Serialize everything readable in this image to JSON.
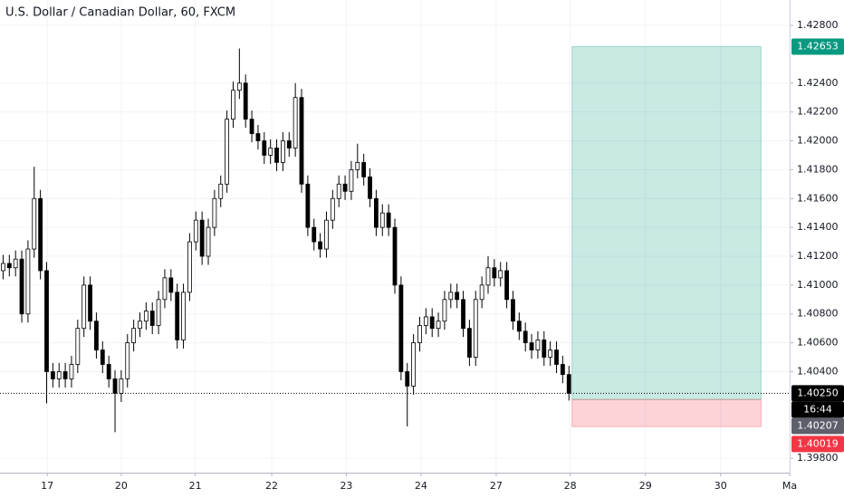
{
  "chart_data": {
    "type": "candlestick",
    "title": "U.S. Dollar / Canadian Dollar, 60, FXCM",
    "xlim": [
      0,
      127
    ],
    "ylim": [
      1.397,
      1.42976
    ],
    "xticks": [
      {
        "value": 7.6,
        "label": "17"
      },
      {
        "value": 19.5,
        "label": "20"
      },
      {
        "value": 31.4,
        "label": "21"
      },
      {
        "value": 43.7,
        "label": "22"
      },
      {
        "value": 55.7,
        "label": "23"
      },
      {
        "value": 67.7,
        "label": "24"
      },
      {
        "value": 79.8,
        "label": "27"
      },
      {
        "value": 91.7,
        "label": "28"
      },
      {
        "value": 103.8,
        "label": "29"
      },
      {
        "value": 115.9,
        "label": "30"
      },
      {
        "value": 127,
        "label": "Ma"
      }
    ],
    "yticks": [
      {
        "value": 1.428,
        "label": "1.42800"
      },
      {
        "value": 1.424,
        "label": "1.42400"
      },
      {
        "value": 1.422,
        "label": "1.42200"
      },
      {
        "value": 1.42,
        "label": "1.42000"
      },
      {
        "value": 1.418,
        "label": "1.41800"
      },
      {
        "value": 1.416,
        "label": "1.41600"
      },
      {
        "value": 1.414,
        "label": "1.41400"
      },
      {
        "value": 1.412,
        "label": "1.41200"
      },
      {
        "value": 1.41,
        "label": "1.41000"
      },
      {
        "value": 1.408,
        "label": "1.40800"
      },
      {
        "value": 1.406,
        "label": "1.40600"
      },
      {
        "value": 1.404,
        "label": "1.40400"
      },
      {
        "value": 1.398,
        "label": "1.39800"
      }
    ],
    "grid": true,
    "up_color": "#ffffff",
    "down_color": "#000000",
    "open": [
      1.411,
      1.4115,
      1.4112,
      1.4118,
      1.408,
      1.4125,
      1.416,
      1.411,
      1.404,
      1.4035,
      1.404,
      1.4035,
      1.4045,
      1.407,
      1.41,
      1.4075,
      1.4055,
      1.4045,
      1.4035,
      1.4025,
      1.4035,
      1.406,
      1.407,
      1.4075,
      1.4082,
      1.4072,
      1.409,
      1.4105,
      1.4095,
      1.4062,
      1.4095,
      1.413,
      1.4145,
      1.412,
      1.414,
      1.416,
      1.417,
      1.4215,
      1.4235,
      1.424,
      1.4215,
      1.4205,
      1.42,
      1.419,
      1.4195,
      1.4185,
      1.42,
      1.4195,
      1.423,
      1.417,
      1.414,
      1.413,
      1.4125,
      1.4145,
      1.416,
      1.417,
      1.4165,
      1.418,
      1.4185,
      1.4175,
      1.416,
      1.414,
      1.415,
      1.414,
      1.41,
      1.404,
      1.403,
      1.406,
      1.4072,
      1.4078,
      1.407,
      1.4075,
      1.409,
      1.4095,
      1.409,
      1.407,
      1.405,
      1.409,
      1.41,
      1.4112,
      1.4105,
      1.411,
      1.409,
      1.4075,
      1.4068,
      1.406,
      1.4055,
      1.4062,
      1.405,
      1.4055,
      1.4045,
      1.4038
    ],
    "high": [
      1.4121,
      1.4121,
      1.4124,
      1.4124,
      1.4131,
      1.4182,
      1.4166,
      1.4116,
      1.4046,
      1.4046,
      1.4046,
      1.4051,
      1.4076,
      1.4106,
      1.4106,
      1.4081,
      1.4061,
      1.4051,
      1.4041,
      1.4041,
      1.4066,
      1.4076,
      1.4081,
      1.4088,
      1.4088,
      1.4096,
      1.4111,
      1.4111,
      1.4101,
      1.4101,
      1.4136,
      1.4151,
      1.4151,
      1.4146,
      1.4166,
      1.4176,
      1.4221,
      1.4241,
      1.4264,
      1.4246,
      1.4221,
      1.4211,
      1.4206,
      1.4201,
      1.4201,
      1.4206,
      1.4206,
      1.424,
      1.4236,
      1.4176,
      1.4146,
      1.4136,
      1.4151,
      1.4166,
      1.4176,
      1.4176,
      1.4186,
      1.4198,
      1.4191,
      1.4181,
      1.4166,
      1.4156,
      1.4156,
      1.4146,
      1.4106,
      1.4046,
      1.4066,
      1.4078,
      1.4084,
      1.4084,
      1.4081,
      1.4096,
      1.4101,
      1.4101,
      1.4096,
      1.4076,
      1.4096,
      1.4106,
      1.412,
      1.4118,
      1.4116,
      1.4116,
      1.4096,
      1.4081,
      1.4074,
      1.4066,
      1.4068,
      1.4068,
      1.4061,
      1.4061,
      1.4051,
      1.4044
    ],
    "low": [
      1.4104,
      1.4106,
      1.4106,
      1.4074,
      1.4074,
      1.4119,
      1.4104,
      1.4018,
      1.4029,
      1.4029,
      1.4029,
      1.4029,
      1.4039,
      1.4064,
      1.4069,
      1.4049,
      1.4039,
      1.4029,
      1.3998,
      1.4019,
      1.4029,
      1.4054,
      1.4064,
      1.4069,
      1.4066,
      1.4066,
      1.4084,
      1.4089,
      1.4056,
      1.4056,
      1.4089,
      1.4124,
      1.4114,
      1.4114,
      1.4134,
      1.4154,
      1.4164,
      1.4209,
      1.4229,
      1.4209,
      1.4199,
      1.4194,
      1.4184,
      1.4184,
      1.4179,
      1.4179,
      1.4189,
      1.4189,
      1.4164,
      1.4134,
      1.4124,
      1.4119,
      1.4119,
      1.4139,
      1.4154,
      1.4159,
      1.4159,
      1.4174,
      1.4169,
      1.4154,
      1.4134,
      1.4134,
      1.4134,
      1.4094,
      1.4034,
      1.4002,
      1.4024,
      1.4054,
      1.4066,
      1.4064,
      1.4064,
      1.4069,
      1.4084,
      1.4084,
      1.4064,
      1.4044,
      1.4044,
      1.4084,
      1.4094,
      1.4099,
      1.4099,
      1.4084,
      1.4069,
      1.4062,
      1.4054,
      1.4049,
      1.4049,
      1.4044,
      1.4044,
      1.4039,
      1.4032,
      1.402
    ],
    "close": [
      1.4115,
      1.4112,
      1.4118,
      1.408,
      1.4125,
      1.416,
      1.411,
      1.404,
      1.4035,
      1.404,
      1.4035,
      1.4045,
      1.407,
      1.41,
      1.4075,
      1.4055,
      1.4045,
      1.4035,
      1.4025,
      1.4035,
      1.406,
      1.407,
      1.4075,
      1.4082,
      1.4072,
      1.409,
      1.4105,
      1.4095,
      1.4062,
      1.4095,
      1.413,
      1.4145,
      1.412,
      1.414,
      1.416,
      1.417,
      1.4215,
      1.4235,
      1.424,
      1.4215,
      1.4205,
      1.42,
      1.419,
      1.4195,
      1.4185,
      1.42,
      1.4195,
      1.423,
      1.417,
      1.414,
      1.413,
      1.4125,
      1.4145,
      1.416,
      1.417,
      1.4165,
      1.418,
      1.4185,
      1.4175,
      1.416,
      1.414,
      1.415,
      1.414,
      1.41,
      1.404,
      1.403,
      1.406,
      1.4072,
      1.4078,
      1.407,
      1.4075,
      1.409,
      1.4095,
      1.409,
      1.407,
      1.405,
      1.409,
      1.41,
      1.4112,
      1.4105,
      1.411,
      1.409,
      1.4075,
      1.4068,
      1.406,
      1.4055,
      1.4062,
      1.405,
      1.4055,
      1.4045,
      1.4038,
      1.4025
    ],
    "price_line": {
      "value": 1.4025,
      "label": "1.40250",
      "countdown": "16:44"
    },
    "position": {
      "xlim": [
        92,
        122.4
      ],
      "target": {
        "value": 1.42653,
        "label": "1.42653",
        "color": "#089981"
      },
      "entry": {
        "value": 1.40207,
        "label": "1.40207"
      },
      "stop": {
        "value": 1.40019,
        "label": "1.40019",
        "color": "#f23645"
      }
    }
  }
}
